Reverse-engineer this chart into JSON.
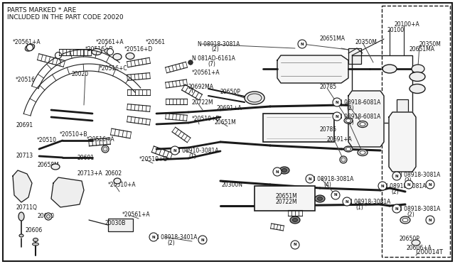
{
  "background_color": "#ffffff",
  "header_text_line1": "PARTS MARKED * ARE",
  "header_text_line2": "INCLUDED IN THE PART CODE 20020",
  "footer_text": "J200014T",
  "fig_width": 6.4,
  "fig_height": 3.72,
  "dpi": 100
}
